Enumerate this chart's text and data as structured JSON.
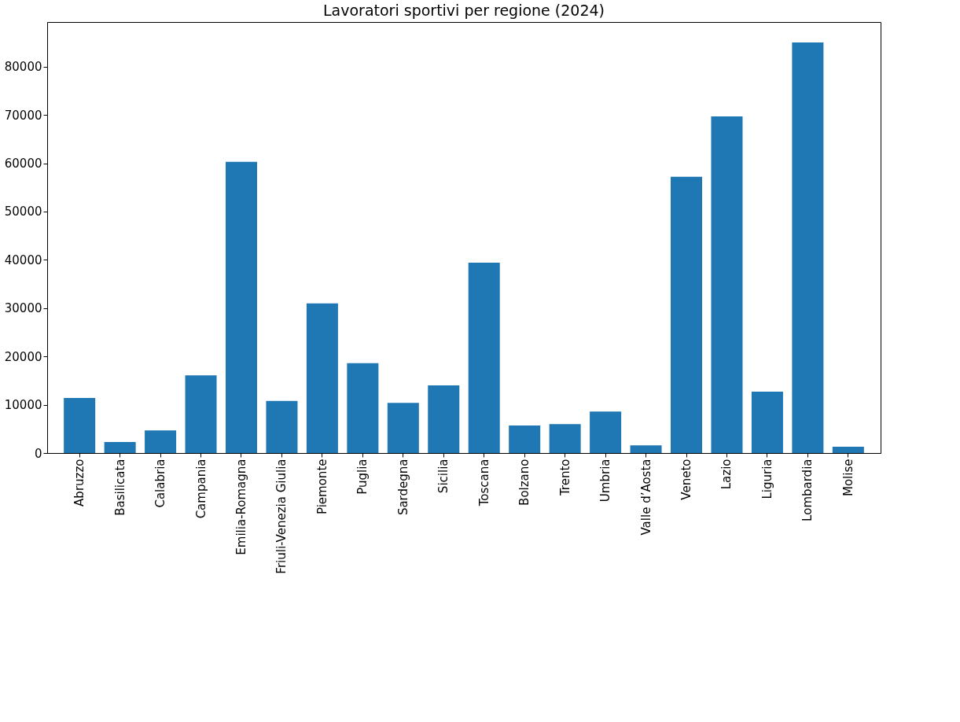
{
  "chart_data": {
    "type": "bar",
    "title": "Lavoratori sportivi per regione (2024)",
    "categories": [
      "Abruzzo",
      "Basilicata",
      "Calabria",
      "Campania",
      "Emilia-Romagna",
      "Friuli-Venezia Giulia",
      "Piemonte",
      "Puglia",
      "Sardegna",
      "Sicilia",
      "Toscana",
      "Bolzano",
      "Trento",
      "Umbria",
      "Valle d’Aosta",
      "Veneto",
      "Lazio",
      "Liguria",
      "Lombardia",
      "Molise"
    ],
    "values": [
      11400,
      2300,
      4700,
      16100,
      60300,
      10800,
      31000,
      18600,
      10400,
      14000,
      39400,
      5700,
      6000,
      8600,
      1600,
      57200,
      69700,
      12700,
      85000,
      1300
    ],
    "color": "#1f77b4",
    "ylim": [
      0,
      89250
    ],
    "yticks": [
      0,
      10000,
      20000,
      30000,
      40000,
      50000,
      60000,
      70000,
      80000
    ],
    "grid": false
  }
}
